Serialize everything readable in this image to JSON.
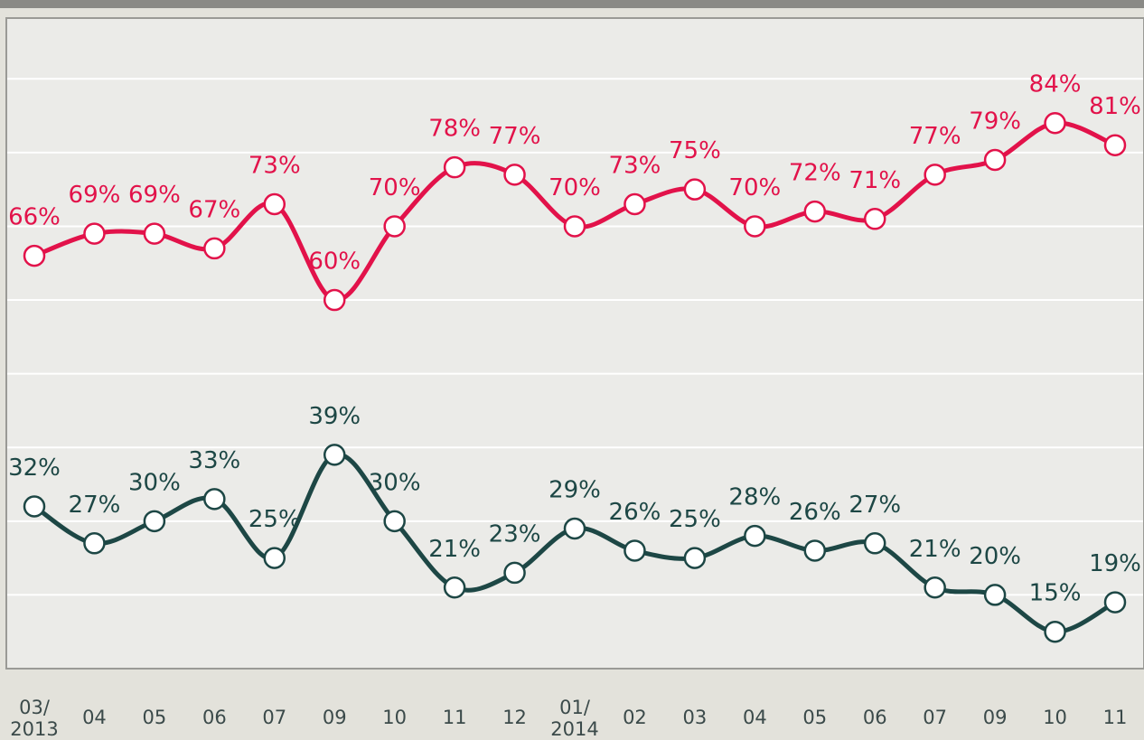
{
  "chart_data": {
    "type": "line",
    "categories": [
      "03/\n2013",
      "04",
      "05",
      "06",
      "07",
      "09",
      "10",
      "11",
      "12",
      "01/\n2014",
      "02",
      "03",
      "04",
      "05",
      "06",
      "07",
      "09",
      "10",
      "11"
    ],
    "series": [
      {
        "color": "#e2124a",
        "values": [
          66,
          69,
          69,
          67,
          73,
          60,
          70,
          78,
          77,
          70,
          73,
          75,
          70,
          72,
          71,
          77,
          79,
          84,
          81
        ],
        "value_labels": [
          "66%",
          "69%",
          "69%",
          "67%",
          "73%",
          "60%",
          "70%",
          "78%",
          "77%",
          "70%",
          "73%",
          "75%",
          "70%",
          "72%",
          "71%",
          "77%",
          "79%",
          "84%",
          "81%"
        ]
      },
      {
        "color": "#1d4745",
        "values": [
          32,
          27,
          30,
          33,
          25,
          39,
          30,
          21,
          23,
          29,
          26,
          25,
          28,
          26,
          27,
          21,
          20,
          15,
          19
        ],
        "value_labels": [
          "32%",
          "27%",
          "30%",
          "33%",
          "25%",
          "39%",
          "30%",
          "21%",
          "23%",
          "29%",
          "26%",
          "25%",
          "28%",
          "26%",
          "27%",
          "21%",
          "20%",
          "15%",
          "19%"
        ]
      }
    ],
    "ylim": [
      10,
      98
    ],
    "yticks": [
      20,
      30,
      40,
      50,
      60,
      70,
      80,
      90
    ],
    "grid": true
  }
}
